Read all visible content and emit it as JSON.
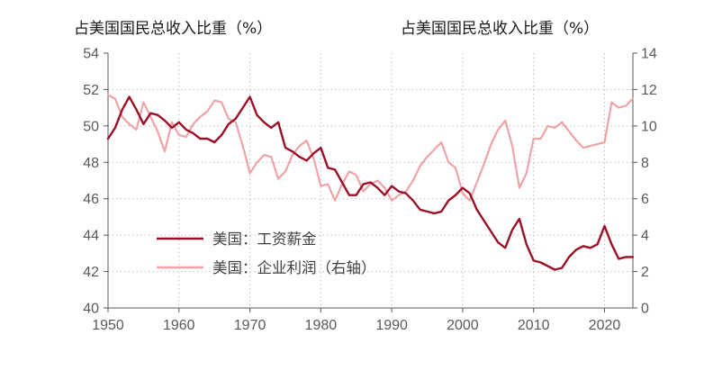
{
  "chart_data": {
    "type": "line",
    "title": "",
    "y_left_label": "占美国国民总收入比重（%）",
    "y_right_label": "占美国国民总收入比重（%）",
    "xlabel": "",
    "xlim": [
      1950,
      2024
    ],
    "ylim_left": [
      40,
      54
    ],
    "ylim_right": [
      0,
      14
    ],
    "x_ticks": [
      1950,
      1960,
      1970,
      1980,
      1990,
      2000,
      2010,
      2020
    ],
    "y_left_ticks": [
      40,
      42,
      44,
      46,
      48,
      50,
      52,
      54
    ],
    "y_right_ticks": [
      0,
      2,
      4,
      6,
      8,
      10,
      12,
      14
    ],
    "grid": true,
    "legend_position": "bottom-left",
    "series": [
      {
        "name": "美国：工资薪金",
        "axis": "left",
        "color": "#9b1028",
        "x": [
          1950,
          1951,
          1952,
          1953,
          1954,
          1955,
          1956,
          1957,
          1958,
          1959,
          1960,
          1961,
          1962,
          1963,
          1964,
          1965,
          1966,
          1967,
          1968,
          1969,
          1970,
          1971,
          1972,
          1973,
          1974,
          1975,
          1976,
          1977,
          1978,
          1979,
          1980,
          1981,
          1982,
          1983,
          1984,
          1985,
          1986,
          1987,
          1988,
          1989,
          1990,
          1991,
          1992,
          1993,
          1994,
          1995,
          1996,
          1997,
          1998,
          1999,
          2000,
          2001,
          2002,
          2003,
          2004,
          2005,
          2006,
          2007,
          2008,
          2009,
          2010,
          2011,
          2012,
          2013,
          2014,
          2015,
          2016,
          2017,
          2018,
          2019,
          2020,
          2021,
          2022,
          2023,
          2024
        ],
        "values": [
          49.3,
          49.9,
          50.9,
          51.6,
          50.9,
          50.1,
          50.7,
          50.6,
          50.3,
          49.9,
          50.2,
          49.8,
          49.6,
          49.3,
          49.3,
          49.1,
          49.5,
          50.1,
          50.4,
          51.0,
          51.6,
          50.6,
          50.2,
          49.9,
          50.2,
          48.8,
          48.6,
          48.3,
          48.1,
          48.5,
          48.8,
          47.7,
          47.6,
          46.9,
          46.2,
          46.2,
          46.8,
          46.9,
          46.6,
          46.2,
          46.7,
          46.4,
          46.3,
          45.9,
          45.4,
          45.3,
          45.2,
          45.3,
          45.9,
          46.2,
          46.6,
          46.3,
          45.4,
          44.8,
          44.2,
          43.6,
          43.3,
          44.3,
          44.9,
          43.5,
          42.6,
          42.5,
          42.3,
          42.1,
          42.2,
          42.8,
          43.2,
          43.4,
          43.3,
          43.5,
          44.5,
          43.5,
          42.7,
          42.8,
          42.8
        ]
      },
      {
        "name": "美国：企业利润（右轴）",
        "axis": "right",
        "color": "#f0a3a6",
        "x": [
          1950,
          1951,
          1952,
          1953,
          1954,
          1955,
          1956,
          1957,
          1958,
          1959,
          1960,
          1961,
          1962,
          1963,
          1964,
          1965,
          1966,
          1967,
          1968,
          1969,
          1970,
          1971,
          1972,
          1973,
          1974,
          1975,
          1976,
          1977,
          1978,
          1979,
          1980,
          1981,
          1982,
          1983,
          1984,
          1985,
          1986,
          1987,
          1988,
          1989,
          1990,
          1991,
          1992,
          1993,
          1994,
          1995,
          1996,
          1997,
          1998,
          1999,
          2000,
          2001,
          2002,
          2003,
          2004,
          2005,
          2006,
          2007,
          2008,
          2009,
          2010,
          2011,
          2012,
          2013,
          2014,
          2015,
          2016,
          2017,
          2018,
          2019,
          2020,
          2021,
          2022,
          2023,
          2024
        ],
        "values": [
          11.7,
          11.5,
          10.5,
          10.1,
          9.8,
          11.3,
          10.5,
          9.7,
          8.6,
          10.2,
          9.5,
          9.4,
          10.1,
          10.5,
          10.8,
          11.4,
          11.3,
          10.4,
          10.2,
          8.9,
          7.4,
          8.0,
          8.4,
          8.3,
          7.1,
          7.5,
          8.4,
          8.9,
          9.2,
          8.2,
          6.7,
          6.8,
          5.9,
          6.8,
          7.5,
          7.3,
          6.4,
          6.8,
          7.0,
          6.6,
          5.9,
          6.2,
          6.4,
          7.0,
          7.8,
          8.3,
          8.7,
          9.1,
          8.0,
          7.7,
          6.3,
          5.9,
          6.9,
          7.9,
          9.0,
          9.8,
          10.3,
          8.9,
          6.6,
          7.4,
          9.3,
          9.3,
          10.0,
          9.9,
          10.2,
          9.7,
          9.2,
          8.8,
          8.9,
          9.0,
          9.1,
          11.3,
          11.0,
          11.1,
          11.5
        ]
      }
    ]
  }
}
